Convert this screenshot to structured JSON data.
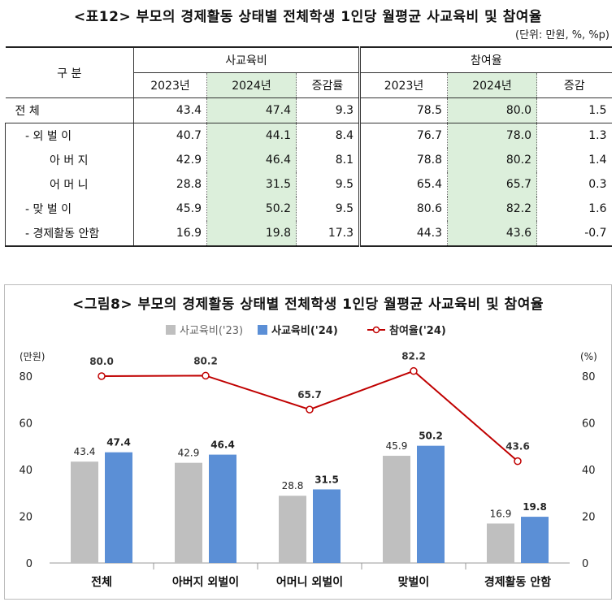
{
  "table": {
    "title": "<표12> 부모의 경제활동 상태별 전체학생 1인당 월평균 사교육비 및 참여율",
    "unit": "(단위: 만원, %, %p)",
    "row_header": "구        분",
    "group1": "사교육비",
    "group2": "참여율",
    "cols": [
      "2023년",
      "2024년",
      "증감률",
      "2023년",
      "2024년",
      "증감"
    ],
    "rows": [
      {
        "label": "전        체",
        "values": [
          "43.4",
          "47.4",
          "9.3",
          "78.5",
          "80.0",
          "1.5"
        ]
      },
      {
        "label": "- 외  벌  이",
        "values": [
          "40.7",
          "44.1",
          "8.4",
          "76.7",
          "78.0",
          "1.3"
        ]
      },
      {
        "label": "아 버 지",
        "values": [
          "42.9",
          "46.4",
          "8.1",
          "78.8",
          "80.2",
          "1.4"
        ]
      },
      {
        "label": "어 머 니",
        "values": [
          "28.8",
          "31.5",
          "9.5",
          "65.4",
          "65.7",
          "0.3"
        ]
      },
      {
        "label": "- 맞  벌  이",
        "values": [
          "45.9",
          "50.2",
          "9.5",
          "80.6",
          "82.2",
          "1.6"
        ]
      },
      {
        "label": "- 경제활동 안함",
        "values": [
          "16.9",
          "19.8",
          "17.3",
          "44.3",
          "43.6",
          "-0.7"
        ]
      }
    ]
  },
  "chart_data": {
    "type": "bar",
    "title": "<그림8> 부모의 경제활동 상태별 전체학생 1인당 월평균 사교육비 및 참여율",
    "categories": [
      "전체",
      "아버지 외벌이",
      "어머니 외벌이",
      "맞벌이",
      "경제활동 안함"
    ],
    "series": [
      {
        "name": "사교육비('23)",
        "type": "bar",
        "color": "#bfbfbf",
        "values": [
          43.4,
          42.9,
          28.8,
          45.9,
          16.9
        ]
      },
      {
        "name": "사교육비('24)",
        "type": "bar",
        "color": "#5b8fd6",
        "values": [
          47.4,
          46.4,
          31.5,
          50.2,
          19.8
        ]
      },
      {
        "name": "참여율('24)",
        "type": "line",
        "color": "#c00000",
        "axis": "right",
        "values": [
          80.0,
          80.2,
          65.7,
          82.2,
          43.6
        ]
      }
    ],
    "y_left": {
      "label": "(만원)",
      "range": [
        0,
        80
      ],
      "ticks": [
        0,
        20,
        40,
        60,
        80
      ]
    },
    "y_right": {
      "label": "(%)",
      "range": [
        0,
        80
      ],
      "ticks": [
        0,
        20,
        40,
        60,
        80
      ]
    },
    "legend_position": "top",
    "grid": false
  }
}
